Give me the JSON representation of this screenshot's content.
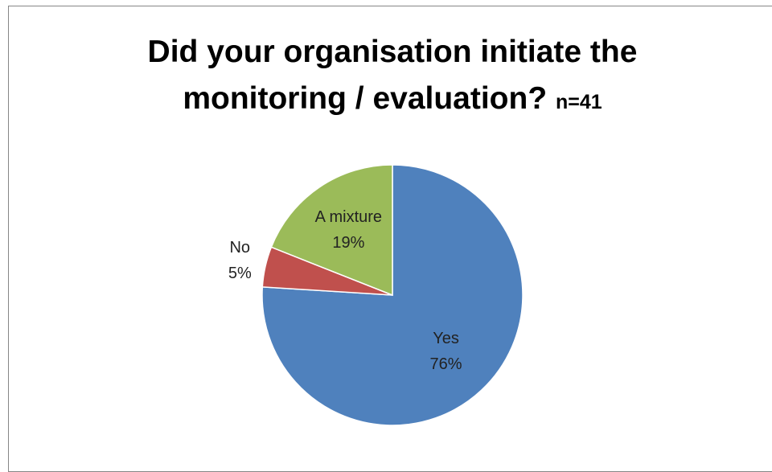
{
  "chart_data": {
    "type": "pie",
    "title": "Did your organisation initiate the monitoring / evaluation?",
    "subtitle": "n=41",
    "categories": [
      "Yes",
      "No",
      "A mixture"
    ],
    "values": [
      76,
      5,
      19
    ],
    "value_labels": [
      "76%",
      "5%",
      "19%"
    ],
    "colors": [
      "#4f81bd",
      "#c0504d",
      "#9bbb59"
    ]
  }
}
